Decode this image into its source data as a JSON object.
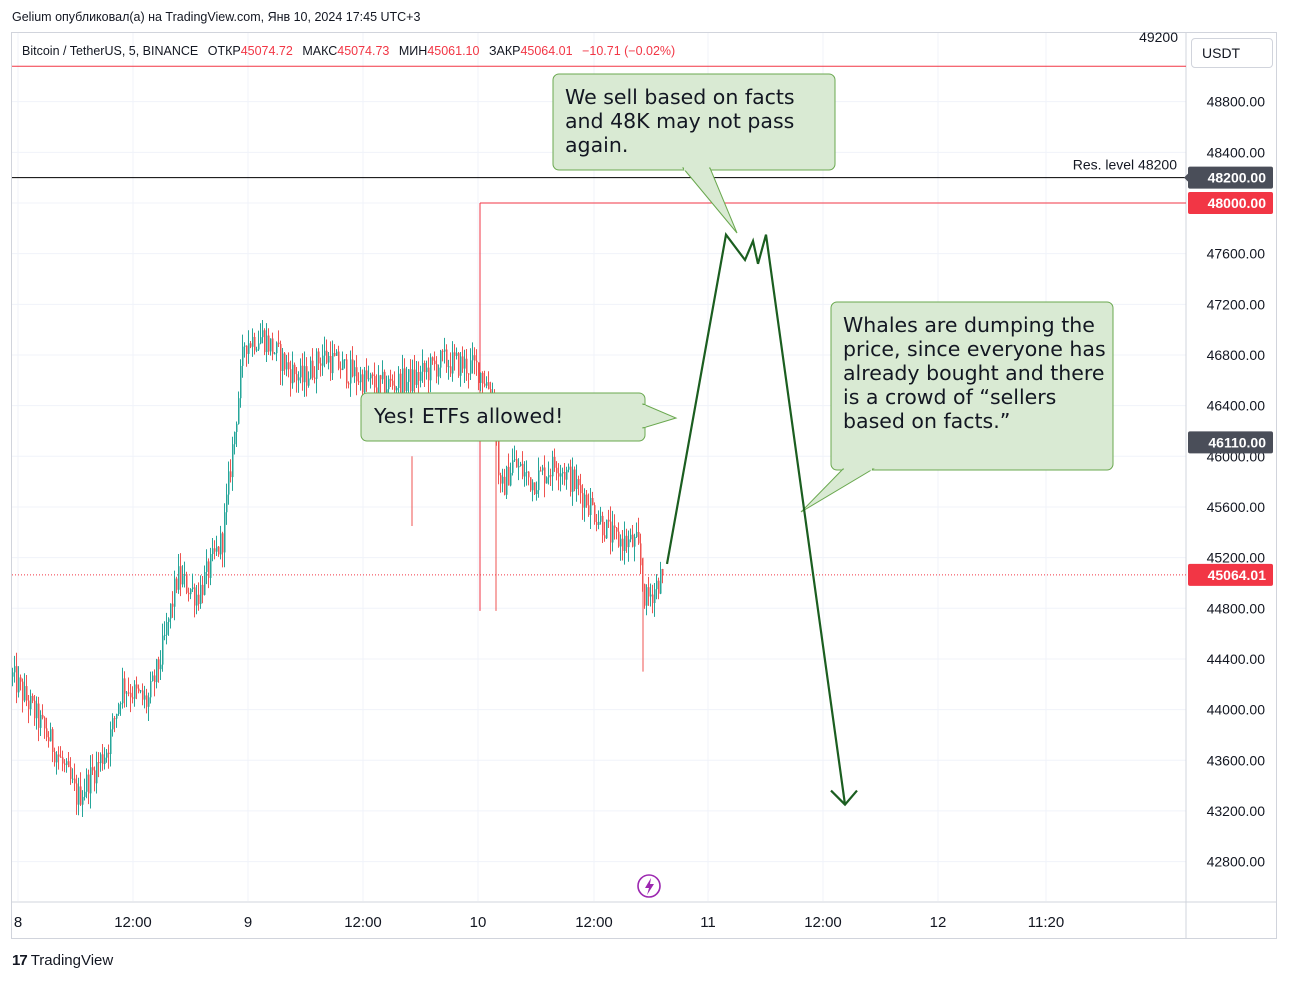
{
  "header": {
    "publish_line": "Gelium опубликовал(а) на TradingView.com, Янв 10, 2024 17:45 UTC+3"
  },
  "legend": {
    "symbol": "Bitcoin / TetherUS, 5, BINANCE",
    "open_label": "ОТКР",
    "open": "45074.72",
    "high_label": "МАКС",
    "high": "45074.73",
    "low_label": "МИН",
    "low": "45061.10",
    "close_label": "ЗАКР",
    "close": "45064.01",
    "change": "−10.71 (−0.02%)"
  },
  "unit_button": "USDT",
  "footer": {
    "brand": "TradingView",
    "brand_mark": "17"
  },
  "colors": {
    "up": "#26a69a",
    "down": "#ef5350",
    "arrow": "#1b5e20",
    "callout_fill": "#d9ead3",
    "callout_stroke": "#6aa84f",
    "resistance_line": "#000000",
    "level_red": "#f23645",
    "dark_badge": "#4a4e59",
    "grid": "#f0f3fa"
  },
  "chart_data": {
    "type": "candlestick",
    "symbol": "Bitcoin / TetherUS",
    "interval": "5",
    "exchange": "BINANCE",
    "ylim": [
      42500,
      49300
    ],
    "y_ticks": [
      42800,
      43200,
      43600,
      44000,
      44400,
      44800,
      45200,
      45600,
      46000,
      46400,
      46800,
      47200,
      47600,
      48000,
      48400,
      48800
    ],
    "y_tick_labels": [
      "42800.00",
      "43200.00",
      "43600.00",
      "44000.00",
      "44400.00",
      "44800.00",
      "45200.00",
      "45600.00",
      "46000.00",
      "46400.00",
      "46800.00",
      "47200.00",
      "47600.00",
      "48000.00",
      "48400.00",
      "48800.00"
    ],
    "top_label": "49200",
    "x_tick_labels": [
      "8",
      "12:00",
      "9",
      "12:00",
      "10",
      "12:00",
      "11",
      "12:00",
      "12",
      "11:20"
    ],
    "badges": [
      {
        "value": 48200,
        "label": "48200.00",
        "style": "dark"
      },
      {
        "value": 48000,
        "label": "48000.00",
        "style": "red"
      },
      {
        "value": 46110,
        "label": "46110.00",
        "style": "dark"
      },
      {
        "value": 45064.01,
        "label": "45064.01",
        "style": "red"
      }
    ],
    "resistance": {
      "value": 48200,
      "label": "Res. level 48200"
    },
    "horizontal_lines": [
      {
        "value": 49080,
        "style": "red-solid"
      },
      {
        "value": 48000,
        "style": "red-solid"
      },
      {
        "value": 45064.01,
        "style": "red-dotted"
      }
    ],
    "vertical_marker_range": [
      44780,
      48000
    ],
    "price_path_anchors": [
      {
        "t": 0,
        "p": 44260
      },
      {
        "t": 20,
        "p": 44000
      },
      {
        "t": 45,
        "p": 43650
      },
      {
        "t": 65,
        "p": 43300
      },
      {
        "t": 95,
        "p": 43700
      },
      {
        "t": 110,
        "p": 44200
      },
      {
        "t": 135,
        "p": 44050
      },
      {
        "t": 148,
        "p": 44400
      },
      {
        "t": 165,
        "p": 45050
      },
      {
        "t": 185,
        "p": 44900
      },
      {
        "t": 210,
        "p": 45350
      },
      {
        "t": 222,
        "p": 46200
      },
      {
        "t": 232,
        "p": 46900
      },
      {
        "t": 250,
        "p": 46950
      },
      {
        "t": 275,
        "p": 46700
      },
      {
        "t": 290,
        "p": 46600
      },
      {
        "t": 310,
        "p": 46800
      },
      {
        "t": 340,
        "p": 46650
      },
      {
        "t": 365,
        "p": 46550
      },
      {
        "t": 400,
        "p": 46600
      },
      {
        "t": 430,
        "p": 46750
      },
      {
        "t": 465,
        "p": 46700
      },
      {
        "t": 480,
        "p": 46500
      },
      {
        "t": 488,
        "p": 45700
      },
      {
        "t": 500,
        "p": 45950
      },
      {
        "t": 520,
        "p": 45800
      },
      {
        "t": 545,
        "p": 45950
      },
      {
        "t": 575,
        "p": 45650
      },
      {
        "t": 600,
        "p": 45350
      },
      {
        "t": 625,
        "p": 45300
      },
      {
        "t": 633,
        "p": 44850
      },
      {
        "t": 650,
        "p": 45064.01
      }
    ],
    "projection": [
      {
        "t": 655,
        "p": 45150
      },
      {
        "t": 714,
        "p": 47750
      },
      {
        "t": 733,
        "p": 47550
      },
      {
        "t": 741,
        "p": 47700
      },
      {
        "t": 746,
        "p": 47520
      },
      {
        "t": 754,
        "p": 47750
      },
      {
        "t": 833,
        "p": 43250
      }
    ],
    "annotations": [
      {
        "id": "etf",
        "text": "Yes! ETFs allowed!"
      },
      {
        "id": "facts",
        "text": "We sell based on facts and 48K may not pass again."
      },
      {
        "id": "whales",
        "text": "Whales are dumping the price, since everyone has already bought and there is a crowd of “sellers based on facts.”"
      }
    ]
  }
}
